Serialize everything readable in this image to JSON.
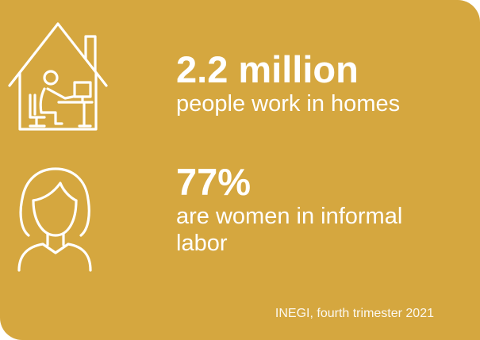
{
  "colors": {
    "background": "#d5a73f",
    "foreground": "#ffffff"
  },
  "icons": {
    "house": "house-person-at-computer-icon",
    "woman": "woman-portrait-icon"
  },
  "stats": [
    {
      "value": "2.2 million",
      "description": "people work in homes"
    },
    {
      "value": "77%",
      "description": "are women in informal labor"
    }
  ],
  "source": "INEGI, fourth trimester 2021"
}
